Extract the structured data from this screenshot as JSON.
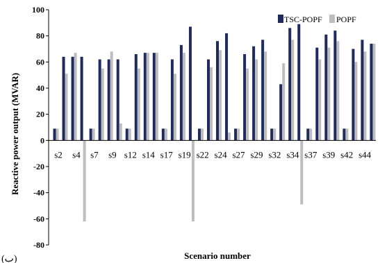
{
  "chart_data": {
    "type": "bar",
    "ylabel": "Reactive power output  (MVAR)",
    "xlabel": "Scenario number",
    "ylim": [
      -80,
      100
    ],
    "yticks": [
      -80,
      -60,
      -40,
      -20,
      0,
      20,
      40,
      60,
      80,
      100
    ],
    "grid": false,
    "legend_position": "top-right",
    "caption": "(ب)",
    "tick_labels": [
      "s2",
      "s4",
      "s7",
      "s9",
      "s12",
      "s14",
      "s17",
      "s19",
      "s22",
      "s24",
      "s27",
      "s29",
      "s32",
      "s34",
      "s37",
      "s39",
      "s42",
      "s44"
    ],
    "series": [
      {
        "name": "TSC-POPF",
        "color": "#1f2a5e",
        "values": [
          9,
          64,
          64,
          64,
          9,
          62,
          62,
          62,
          9,
          66,
          67,
          67,
          9,
          62,
          73,
          87,
          9,
          62,
          76,
          82,
          9,
          66,
          72,
          77,
          9,
          43,
          86,
          89,
          9,
          71,
          81,
          84,
          9,
          70,
          77,
          74
        ]
      },
      {
        "name": "POPF",
        "color": "#bdbdbd",
        "values": [
          9,
          51,
          67,
          -62,
          9,
          55,
          68,
          13,
          9,
          55,
          67,
          67,
          9,
          51,
          67,
          -62,
          9,
          56,
          69,
          6,
          9,
          55,
          62,
          68,
          9,
          59,
          77,
          -49,
          9,
          62,
          71,
          76,
          9,
          60,
          68,
          74
        ]
      }
    ]
  }
}
